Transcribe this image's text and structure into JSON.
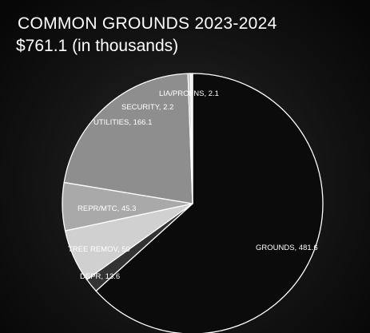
{
  "chart_data": {
    "type": "pie",
    "title": "COMMON GROUNDS 2023-2024",
    "subtitle": "$761.1 (in thousands)",
    "slices": [
      {
        "label": "GROUNDS",
        "value": 481.6,
        "color": "#0b0b0b"
      },
      {
        "label": "DEPR",
        "value": 13.6,
        "color": "#333333"
      },
      {
        "label": "TREE REMOV",
        "value": 50,
        "color": "#d0d0d0"
      },
      {
        "label": "REPR/MTC",
        "value": 45.3,
        "color": "#a9a9a9"
      },
      {
        "label": "UTILITIES",
        "value": 166.1,
        "color": "#8e8e8e"
      },
      {
        "label": "SECURITY",
        "value": 2.2,
        "color": "#b8b8b8"
      },
      {
        "label": "LIA/PROFNS",
        "value": 2.1,
        "color": "#eeeeee"
      }
    ],
    "data_labels": [
      "GROUNDS, 481.6",
      "DEPR, 13.6",
      "TREE REMOV, 50",
      "REPR/MTC, 45.3",
      "UTILITIES, 166.1",
      "SECURITY, 2.2",
      "LIA/PROFNS, 2.1"
    ]
  }
}
